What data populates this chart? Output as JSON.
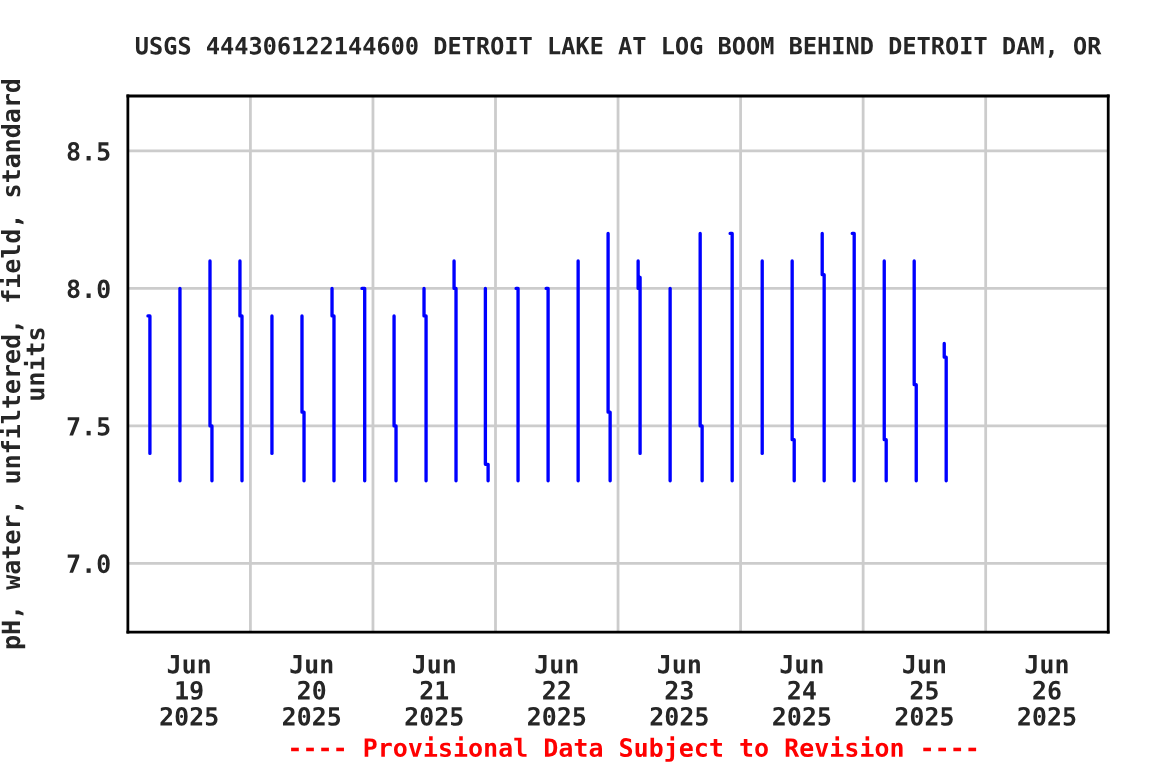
{
  "chart_data": {
    "type": "line",
    "title": "USGS 444306122144600 DETROIT LAKE AT LOG BOOM BEHIND DETROIT DAM, OR",
    "ylabel": "pH, water, unfiltered, field, standard\nunits",
    "annotations": [
      "---- Provisional Data Subject to Revision ----"
    ],
    "xlim": [
      "2025-06-19T00:00",
      "2025-06-27T00:00"
    ],
    "xticks": [
      {
        "value": "2025-06-19T12:00",
        "label": "Jun\n19\n2025"
      },
      {
        "value": "2025-06-20T00:00",
        "label": null
      },
      {
        "value": "2025-06-20T12:00",
        "label": "Jun\n20\n2025"
      },
      {
        "value": "2025-06-21T00:00",
        "label": null
      },
      {
        "value": "2025-06-21T12:00",
        "label": "Jun\n21\n2025"
      },
      {
        "value": "2025-06-22T00:00",
        "label": null
      },
      {
        "value": "2025-06-22T12:00",
        "label": "Jun\n22\n2025"
      },
      {
        "value": "2025-06-23T00:00",
        "label": null
      },
      {
        "value": "2025-06-23T12:00",
        "label": "Jun\n23\n2025"
      },
      {
        "value": "2025-06-24T00:00",
        "label": null
      },
      {
        "value": "2025-06-24T12:00",
        "label": "Jun\n24\n2025"
      },
      {
        "value": "2025-06-25T00:00",
        "label": null
      },
      {
        "value": "2025-06-25T12:00",
        "label": "Jun\n25\n2025"
      },
      {
        "value": "2025-06-26T00:00",
        "label": null
      },
      {
        "value": "2025-06-26T12:00",
        "label": "Jun\n26\n2025"
      }
    ],
    "ylim": [
      6.75,
      8.7
    ],
    "yticks": [
      {
        "value": 7.0,
        "label": "7.0"
      },
      {
        "value": 7.5,
        "label": "7.5"
      },
      {
        "value": 8.0,
        "label": "8.0"
      },
      {
        "value": 8.5,
        "label": "8.5"
      }
    ],
    "grid": true,
    "series": [
      {
        "color": "#0000ff",
        "x": [
          "2025-06-19T03:56",
          "2025-06-19T04:19",
          "2025-06-19T04:19"
        ],
        "values": [
          7.9,
          7.9,
          7.4
        ]
      },
      {
        "color": "#0000ff",
        "x": [
          "2025-06-19T10:12",
          "2025-06-19T10:12"
        ],
        "values": [
          8.0,
          7.3
        ]
      },
      {
        "color": "#0000ff",
        "x": [
          "2025-06-19T16:05",
          "2025-06-19T16:05",
          "2025-06-19T16:28",
          "2025-06-19T16:28"
        ],
        "values": [
          8.1,
          7.5,
          7.5,
          7.3
        ]
      },
      {
        "color": "#0000ff",
        "x": [
          "2025-06-19T21:57",
          "2025-06-19T21:57",
          "2025-06-19T22:21",
          "2025-06-19T22:21"
        ],
        "values": [
          8.1,
          7.9,
          7.9,
          7.3
        ]
      },
      {
        "color": "#0000ff",
        "x": [
          "2025-06-20T04:13",
          "2025-06-20T04:13"
        ],
        "values": [
          7.9,
          7.4
        ]
      },
      {
        "color": "#0000ff",
        "x": [
          "2025-06-20T10:06",
          "2025-06-20T10:06",
          "2025-06-20T10:30",
          "2025-06-20T10:30"
        ],
        "values": [
          7.9,
          7.55,
          7.55,
          7.3
        ]
      },
      {
        "color": "#0000ff",
        "x": [
          "2025-06-20T15:59",
          "2025-06-20T15:59",
          "2025-06-20T16:22",
          "2025-06-20T16:22"
        ],
        "values": [
          8.0,
          7.9,
          7.9,
          7.3
        ]
      },
      {
        "color": "#0000ff",
        "x": [
          "2025-06-20T21:51",
          "2025-06-20T22:23",
          "2025-06-20T22:23"
        ],
        "values": [
          8.0,
          8.0,
          7.3
        ]
      },
      {
        "color": "#0000ff",
        "x": [
          "2025-06-21T04:08",
          "2025-06-21T04:08",
          "2025-06-21T04:31",
          "2025-06-21T04:31"
        ],
        "values": [
          7.9,
          7.5,
          7.5,
          7.3
        ]
      },
      {
        "color": "#0000ff",
        "x": [
          "2025-06-21T10:00",
          "2025-06-21T10:00",
          "2025-06-21T10:24",
          "2025-06-21T10:24"
        ],
        "values": [
          8.0,
          7.9,
          7.9,
          7.3
        ]
      },
      {
        "color": "#0000ff",
        "x": [
          "2025-06-21T15:53",
          "2025-06-21T15:53",
          "2025-06-21T16:16",
          "2025-06-21T16:16"
        ],
        "values": [
          8.1,
          8.0,
          8.0,
          7.3
        ]
      },
      {
        "color": "#0000ff",
        "x": [
          "2025-06-21T22:01",
          "2025-06-21T22:01",
          "2025-06-21T22:33",
          "2025-06-21T22:33"
        ],
        "values": [
          8.0,
          7.36,
          7.36,
          7.3
        ]
      },
      {
        "color": "#0000ff",
        "x": [
          "2025-06-22T04:02",
          "2025-06-22T04:25",
          "2025-06-22T04:25"
        ],
        "values": [
          8.0,
          8.0,
          7.3
        ]
      },
      {
        "color": "#0000ff",
        "x": [
          "2025-06-22T09:55",
          "2025-06-22T10:18",
          "2025-06-22T10:18"
        ],
        "values": [
          8.0,
          8.0,
          7.3
        ]
      },
      {
        "color": "#0000ff",
        "x": [
          "2025-06-22T16:11",
          "2025-06-22T16:11"
        ],
        "values": [
          8.1,
          7.3
        ]
      },
      {
        "color": "#0000ff",
        "x": [
          "2025-06-22T22:03",
          "2025-06-22T22:03",
          "2025-06-22T22:27",
          "2025-06-22T22:27"
        ],
        "values": [
          8.2,
          7.55,
          7.55,
          7.3
        ]
      },
      {
        "color": "#0000ff",
        "x": [
          "2025-06-23T03:56",
          "2025-06-23T03:56",
          "2025-06-23T04:19",
          "2025-06-23T04:19"
        ],
        "values": [
          8.1,
          8.0,
          8.04,
          7.4
        ]
      },
      {
        "color": "#0000ff",
        "x": [
          "2025-06-23T10:12",
          "2025-06-23T10:12"
        ],
        "values": [
          8.0,
          7.3
        ]
      },
      {
        "color": "#0000ff",
        "x": [
          "2025-06-23T16:05",
          "2025-06-23T16:05",
          "2025-06-23T16:28",
          "2025-06-23T16:28"
        ],
        "values": [
          8.2,
          7.5,
          7.5,
          7.3
        ]
      },
      {
        "color": "#0000ff",
        "x": [
          "2025-06-23T21:57",
          "2025-06-23T22:21",
          "2025-06-23T22:21"
        ],
        "values": [
          8.2,
          8.2,
          7.3
        ]
      },
      {
        "color": "#0000ff",
        "x": [
          "2025-06-24T04:14",
          "2025-06-24T04:14"
        ],
        "values": [
          8.1,
          7.4
        ]
      },
      {
        "color": "#0000ff",
        "x": [
          "2025-06-24T10:06",
          "2025-06-24T10:06",
          "2025-06-24T10:30",
          "2025-06-24T10:30"
        ],
        "values": [
          8.1,
          7.45,
          7.45,
          7.3
        ]
      },
      {
        "color": "#0000ff",
        "x": [
          "2025-06-24T15:59",
          "2025-06-24T15:59",
          "2025-06-24T16:22",
          "2025-06-24T16:22"
        ],
        "values": [
          8.2,
          8.05,
          8.05,
          7.3
        ]
      },
      {
        "color": "#0000ff",
        "x": [
          "2025-06-24T21:52",
          "2025-06-24T22:15",
          "2025-06-24T22:15"
        ],
        "values": [
          8.2,
          8.2,
          7.3
        ]
      },
      {
        "color": "#0000ff",
        "x": [
          "2025-06-25T04:08",
          "2025-06-25T04:08",
          "2025-06-25T04:31",
          "2025-06-25T04:31"
        ],
        "values": [
          8.1,
          7.45,
          7.45,
          7.3
        ]
      },
      {
        "color": "#0000ff",
        "x": [
          "2025-06-25T10:00",
          "2025-06-25T10:00",
          "2025-06-25T10:24",
          "2025-06-25T10:24"
        ],
        "values": [
          8.1,
          7.65,
          7.65,
          7.3
        ]
      },
      {
        "color": "#0000ff",
        "x": [
          "2025-06-25T15:53",
          "2025-06-25T15:53",
          "2025-06-25T16:16",
          "2025-06-25T16:16"
        ],
        "values": [
          7.8,
          7.75,
          7.75,
          7.3
        ]
      }
    ]
  }
}
